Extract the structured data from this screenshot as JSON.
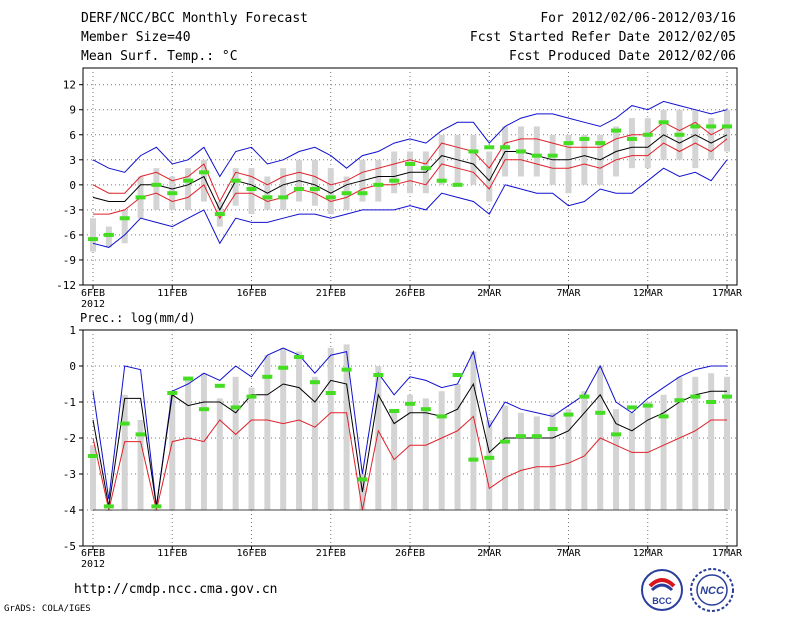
{
  "header": {
    "title": "DERF/NCC/BCC Monthly Forecast",
    "member_size": "Member Size=40",
    "variable": "Mean Surf. Temp.: °C",
    "period": "For 2012/02/06-2012/03/16",
    "refer_date": "Fcst Started Refer Date 2012/02/05",
    "produced_date": "Fcst Produced Date 2012/02/06"
  },
  "footer": {
    "url": "http://cmdp.ncc.cma.gov.cn",
    "credit": "GrADS: COLA/IGES",
    "logo1_text": "BCC",
    "logo2_text": "NCC"
  },
  "colors": {
    "mean_line": "#000000",
    "spread_line": "#e0202a",
    "extreme_line": "#1010d0",
    "box": "#d4d4d4",
    "median": "#44dd22",
    "grid": "#777777"
  },
  "chart_data": [
    {
      "type": "line",
      "name": "temperature",
      "ylabel": "Mean Surf. Temp.: °C",
      "ylim": [
        -12,
        14
      ],
      "yticks": [
        12,
        9,
        6,
        3,
        0,
        -3,
        -6,
        -9,
        -12
      ],
      "x_tick_labels": [
        "6FEB",
        "11FEB",
        "16FEB",
        "21FEB",
        "26FEB",
        "2MAR",
        "7MAR",
        "12MAR",
        "17MAR"
      ],
      "year_label": "2012",
      "x_tick_days": [
        0,
        5,
        10,
        15,
        20,
        25,
        30,
        35,
        40
      ],
      "days": 40,
      "series": [
        {
          "name": "ensemble max",
          "color": "#1010d0",
          "values": [
            3.0,
            2.0,
            1.5,
            3.5,
            4.5,
            2.5,
            3.0,
            4.5,
            1.0,
            4.0,
            4.5,
            2.5,
            3.0,
            4.0,
            4.5,
            3.5,
            2.0,
            3.5,
            4.0,
            5.0,
            5.5,
            5.0,
            6.5,
            7.5,
            7.5,
            5.0,
            7.0,
            8.0,
            8.5,
            8.5,
            8.0,
            7.5,
            7.0,
            8.0,
            9.5,
            9.0,
            10.0,
            9.5,
            9.0,
            8.5,
            9.0
          ]
        },
        {
          "name": "mean + spread",
          "color": "#e0202a",
          "values": [
            0.0,
            -1.0,
            -1.0,
            1.0,
            1.5,
            0.5,
            1.0,
            2.5,
            -2.0,
            1.5,
            1.0,
            0.0,
            1.0,
            1.5,
            1.0,
            0.0,
            0.5,
            1.5,
            2.0,
            2.5,
            3.0,
            2.5,
            5.0,
            4.5,
            4.0,
            2.0,
            5.0,
            5.5,
            5.5,
            5.0,
            4.5,
            4.5,
            4.5,
            5.5,
            6.0,
            6.0,
            7.5,
            6.5,
            7.5,
            6.0,
            7.0
          ]
        },
        {
          "name": "ensemble mean",
          "color": "#000000",
          "values": [
            -1.5,
            -2.0,
            -2.0,
            0.0,
            0.0,
            -0.5,
            0.0,
            1.0,
            -3.0,
            0.5,
            0.0,
            -1.0,
            0.0,
            0.5,
            0.0,
            -1.0,
            0.0,
            0.5,
            1.0,
            1.0,
            1.5,
            1.5,
            3.5,
            3.0,
            2.5,
            0.5,
            4.0,
            4.0,
            3.5,
            3.0,
            3.0,
            3.5,
            3.0,
            4.0,
            4.5,
            4.5,
            6.0,
            5.0,
            6.0,
            5.0,
            6.0
          ]
        },
        {
          "name": "mean - spread",
          "color": "#e0202a",
          "values": [
            -3.5,
            -3.5,
            -3.0,
            -1.5,
            -1.0,
            -2.0,
            -1.5,
            0.0,
            -4.0,
            -1.0,
            -1.0,
            -2.0,
            -1.5,
            -0.5,
            -1.0,
            -2.0,
            -1.5,
            -0.5,
            0.0,
            0.0,
            0.5,
            0.0,
            2.5,
            2.0,
            1.5,
            -0.5,
            3.0,
            3.0,
            2.5,
            2.0,
            2.0,
            2.5,
            2.0,
            3.0,
            3.5,
            3.5,
            5.0,
            4.0,
            5.0,
            4.0,
            5.5
          ]
        },
        {
          "name": "ensemble min",
          "color": "#1010d0",
          "values": [
            -7.0,
            -7.5,
            -6.0,
            -4.0,
            -4.5,
            -5.0,
            -4.0,
            -3.0,
            -7.0,
            -4.0,
            -4.5,
            -4.5,
            -4.0,
            -3.5,
            -3.5,
            -4.0,
            -3.5,
            -3.0,
            -3.0,
            -3.0,
            -2.5,
            -3.0,
            -1.0,
            -1.5,
            -2.0,
            -3.5,
            0.0,
            -0.5,
            -1.0,
            -1.0,
            -2.5,
            -2.0,
            -0.5,
            -1.0,
            -1.0,
            0.5,
            2.0,
            1.0,
            1.5,
            0.5,
            3.0
          ]
        }
      ],
      "box_low": [
        -8,
        -7.5,
        -7,
        -4,
        -3,
        -3,
        -3,
        -2,
        -5,
        -2.5,
        -3.5,
        -3,
        -3,
        -2,
        -2.5,
        -3.5,
        -3,
        -2,
        -2,
        -1,
        -1,
        -1,
        0,
        0,
        0,
        -2,
        1,
        1,
        1,
        0,
        -1,
        0,
        0,
        1,
        2,
        2,
        3,
        3,
        2,
        3,
        4
      ],
      "box_high": [
        -4,
        -5,
        -3,
        1,
        2,
        1,
        2,
        3,
        -2,
        2,
        2,
        1,
        2,
        3,
        3,
        2,
        1,
        3,
        3,
        4,
        4,
        4,
        6,
        6,
        6,
        4,
        7,
        7,
        7,
        6,
        6,
        6,
        6,
        7,
        8,
        8,
        9,
        9,
        9,
        8,
        9
      ],
      "median": [
        -6.5,
        -6,
        -4,
        -1.5,
        0,
        -1,
        0.5,
        1.5,
        -3.5,
        0.5,
        -0.5,
        -1.5,
        -1.5,
        -0.5,
        -0.5,
        -1.5,
        -1,
        -1,
        0,
        0.5,
        2.5,
        2,
        0.5,
        0,
        4,
        4.5,
        4.5,
        4,
        3.5,
        3.5,
        5,
        5.5,
        5,
        6.5,
        5.5,
        6,
        7.5,
        6,
        7,
        7,
        7
      ]
    },
    {
      "type": "line",
      "name": "precipitation",
      "ylabel": "Prec.: log(mm/d)",
      "ylim": [
        -5,
        1
      ],
      "yticks": [
        1,
        0,
        -1,
        -2,
        -3,
        -4,
        -5
      ],
      "x_tick_labels": [
        "6FEB",
        "11FEB",
        "16FEB",
        "21FEB",
        "26FEB",
        "2MAR",
        "7MAR",
        "12MAR",
        "17MAR"
      ],
      "year_label": "2012",
      "x_tick_days": [
        0,
        5,
        10,
        15,
        20,
        25,
        30,
        35,
        40
      ],
      "days": 40,
      "series": [
        {
          "name": "ensemble max",
          "color": "#1010d0",
          "values": [
            -0.7,
            -3.7,
            0.0,
            -0.1,
            -3.9,
            -0.7,
            -0.5,
            -0.2,
            -0.4,
            0.0,
            -0.3,
            0.3,
            0.5,
            0.3,
            -0.2,
            0.3,
            0.4,
            -3.0,
            -0.2,
            -0.8,
            -0.3,
            -0.4,
            -0.6,
            -0.5,
            0.4,
            -1.7,
            -1.0,
            -1.2,
            -1.3,
            -1.4,
            -1.1,
            -0.8,
            0.0,
            -1.0,
            -1.3,
            -0.9,
            -0.6,
            -0.3,
            -0.1,
            0.0,
            0.0
          ]
        },
        {
          "name": "ensemble mean",
          "color": "#000000",
          "values": [
            -1.5,
            -3.9,
            -0.9,
            -0.9,
            -3.9,
            -0.8,
            -1.1,
            -1.0,
            -1.0,
            -1.3,
            -0.8,
            -0.8,
            -0.5,
            -0.6,
            -1.0,
            -0.4,
            -0.5,
            -3.5,
            -0.8,
            -1.6,
            -1.3,
            -1.3,
            -1.4,
            -1.2,
            -0.5,
            -2.4,
            -2.0,
            -2.0,
            -2.0,
            -2.0,
            -1.8,
            -1.3,
            -0.8,
            -1.6,
            -1.8,
            -1.5,
            -1.3,
            -1.0,
            -0.8,
            -0.7,
            -0.7
          ]
        },
        {
          "name": "mean - spread",
          "color": "#e0202a",
          "values": [
            -2.0,
            -4.0,
            -2.1,
            -2.1,
            -4.0,
            -2.1,
            -2.0,
            -2.1,
            -1.5,
            -1.9,
            -1.5,
            -1.5,
            -1.6,
            -1.5,
            -1.7,
            -1.3,
            -1.3,
            -4.0,
            -1.8,
            -2.6,
            -2.2,
            -2.2,
            -2.0,
            -1.8,
            -1.4,
            -3.4,
            -3.1,
            -2.9,
            -2.8,
            -2.8,
            -2.7,
            -2.5,
            -2.0,
            -2.2,
            -2.4,
            -2.4,
            -2.2,
            -2.0,
            -1.8,
            -1.5,
            -1.5
          ]
        },
        {
          "name": "lower bound",
          "color": "#e0202a",
          "values": [
            -4.0,
            -4.0,
            -4.0,
            -4.0,
            -4.0,
            -4.0,
            -4.0,
            -4.0,
            -4.0,
            -4.0,
            -4.0,
            -4.0,
            -4.0,
            -4.0,
            -4.0,
            -4.0,
            -4.0,
            -4.0,
            -4.0,
            -4.0,
            -4.0,
            -4.0,
            -4.0,
            -4.0,
            -4.0,
            -4.0,
            -4.0,
            -4.0,
            -4.0,
            -4.0,
            -4.0,
            -4.0,
            -4.0,
            -4.0,
            -4.0,
            -4.0,
            -4.0,
            -4.0,
            -4.0,
            -4.0,
            -4.0
          ]
        },
        {
          "name": "lower bound (dark)",
          "color": "#444444",
          "values": [
            -4.0,
            -4.0,
            -4.0,
            -4.0,
            -4.0,
            -4.0,
            -4.0,
            -4.0,
            -4.0,
            -4.0,
            -4.0,
            -4.0,
            -4.0,
            -4.0,
            -4.0,
            -4.0,
            -4.0,
            -4.0,
            -4.0,
            -4.0,
            -4.0,
            -4.0,
            -4.0,
            -4.0,
            -4.0,
            -4.0,
            -4.0,
            -4.0,
            -4.0,
            -4.0,
            -4.0,
            -4.0,
            -4.0,
            -4.0,
            -4.0,
            -4.0,
            -4.0,
            -4.0,
            -4.0,
            -4.0,
            -4.0
          ]
        }
      ],
      "box_low": [
        -4,
        -4,
        -4,
        -4,
        -4,
        -4,
        -4,
        -4,
        -4,
        -4,
        -4,
        -4,
        -4,
        -4,
        -4,
        -4,
        -4,
        -4,
        -4,
        -4,
        -4,
        -4,
        -4,
        -4,
        -4,
        -4,
        -4,
        -4,
        -4,
        -4,
        -4,
        -4,
        -4,
        -4,
        -4,
        -4,
        -4,
        -4,
        -4,
        -4,
        -4
      ],
      "box_high": [
        -2.2,
        -4,
        -0.8,
        -1.5,
        -4,
        -0.7,
        -0.3,
        -0.2,
        -0.9,
        -0.3,
        -0.6,
        0.3,
        0.5,
        0.4,
        -0.3,
        0.5,
        0.6,
        -3,
        0,
        -1.2,
        -0.8,
        -0.9,
        -0.7,
        -0.5,
        0.4,
        -1.5,
        -1.1,
        -1.3,
        -1.4,
        -1.3,
        -1.2,
        -0.7,
        0.0,
        -1.2,
        -1.3,
        -1.0,
        -0.8,
        -0.3,
        -0.3,
        -0.2,
        -0.3
      ],
      "median": [
        -2.5,
        -3.9,
        -1.6,
        -1.9,
        -3.9,
        -0.75,
        -0.35,
        -1.2,
        -0.55,
        -1.15,
        -0.85,
        -0.3,
        -0.05,
        0.25,
        -0.45,
        -0.75,
        -0.1,
        -3.15,
        -0.25,
        -1.25,
        -1.05,
        -1.2,
        -1.4,
        -0.25,
        -2.6,
        -2.55,
        -2.1,
        -1.95,
        -1.95,
        -1.75,
        -1.35,
        -0.85,
        -1.3,
        -1.9,
        -1.15,
        -1.1,
        -1.4,
        -0.95,
        -0.85,
        -1.0,
        -0.85
      ]
    }
  ]
}
